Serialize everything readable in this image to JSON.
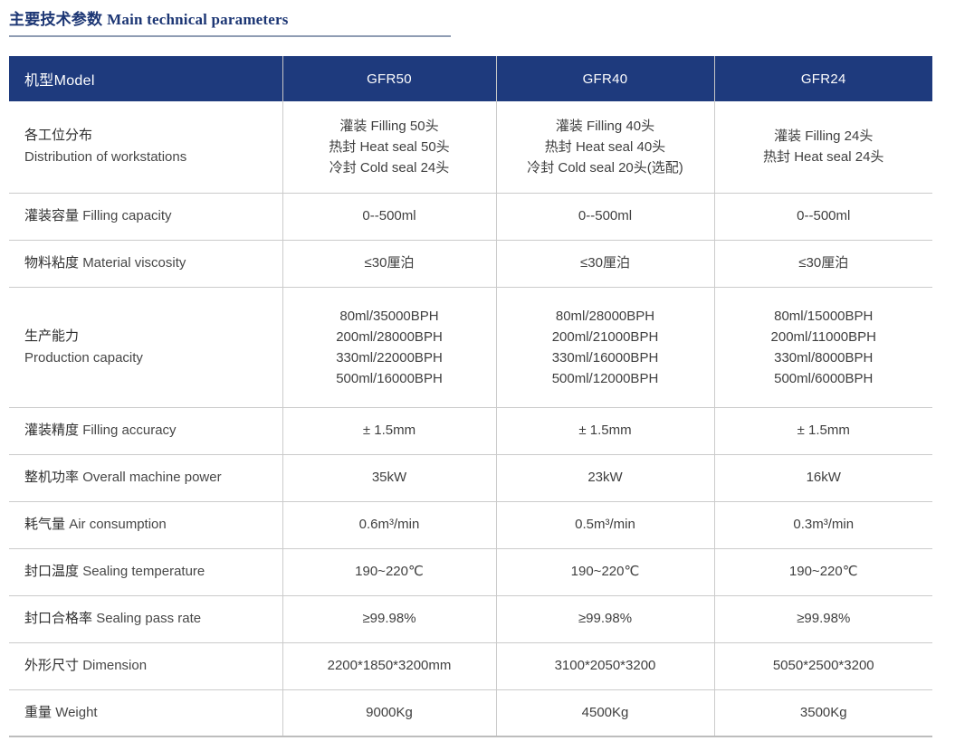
{
  "page": {
    "title_zh": "主要技术参数",
    "title_en": "Main technical parameters"
  },
  "colors": {
    "header_bg": "#1e3a7d",
    "header_text": "#ffffff",
    "title_text": "#1c3674",
    "grid_line": "#cbcbcb",
    "body_text": "#3f3f3f"
  },
  "table": {
    "header": {
      "model_label": "机型Model",
      "models": [
        "GFR50",
        "GFR40",
        "GFR24"
      ]
    },
    "rows": [
      {
        "label_zh": "各工位分布",
        "label_en": "Distribution of workstations",
        "stacked_label": true,
        "values": [
          [
            "灌装 Filling 50头",
            "热封 Heat seal 50头",
            "冷封 Cold seal 24头"
          ],
          [
            "灌装 Filling 40头",
            "热封 Heat seal 40头",
            "冷封 Cold seal 20头(选配)"
          ],
          [
            "灌装 Filling 24头",
            "热封 Heat seal 24头"
          ]
        ]
      },
      {
        "label_zh": "灌装容量",
        "label_en": "Filling capacity",
        "stacked_label": false,
        "values": [
          "0--500ml",
          "0--500ml",
          "0--500ml"
        ]
      },
      {
        "label_zh": "物料粘度",
        "label_en": "Material viscosity",
        "stacked_label": false,
        "values": [
          "≤30厘泊",
          "≤30厘泊",
          "≤30厘泊"
        ]
      },
      {
        "label_zh": "生产能力",
        "label_en": "Production capacity",
        "stacked_label": true,
        "values": [
          [
            "80ml/35000BPH",
            "200ml/28000BPH",
            "330ml/22000BPH",
            "500ml/16000BPH"
          ],
          [
            "80ml/28000BPH",
            "200ml/21000BPH",
            "330ml/16000BPH",
            "500ml/12000BPH"
          ],
          [
            "80ml/15000BPH",
            "200ml/11000BPH",
            "330ml/8000BPH",
            "500ml/6000BPH"
          ]
        ]
      },
      {
        "label_zh": "灌装精度",
        "label_en": "Filling accuracy",
        "stacked_label": false,
        "values": [
          "± 1.5mm",
          "± 1.5mm",
          "± 1.5mm"
        ]
      },
      {
        "label_zh": "整机功率",
        "label_en": "Overall machine power",
        "stacked_label": false,
        "values": [
          "35kW",
          "23kW",
          "16kW"
        ]
      },
      {
        "label_zh": "耗气量",
        "label_en": "Air consumption",
        "stacked_label": false,
        "values": [
          "0.6m³/min",
          "0.5m³/min",
          "0.3m³/min"
        ]
      },
      {
        "label_zh": "封口温度",
        "label_en": "Sealing temperature",
        "stacked_label": false,
        "values": [
          "190~220℃",
          "190~220℃",
          "190~220℃"
        ]
      },
      {
        "label_zh": "封口合格率",
        "label_en": "Sealing pass rate",
        "stacked_label": false,
        "values": [
          "≥99.98%",
          "≥99.98%",
          "≥99.98%"
        ]
      },
      {
        "label_zh": "外形尺寸",
        "label_en": "Dimension",
        "stacked_label": false,
        "values": [
          "2200*1850*3200mm",
          "3100*2050*3200",
          "5050*2500*3200"
        ]
      },
      {
        "label_zh": "重量",
        "label_en": "Weight",
        "stacked_label": false,
        "values": [
          "9000Kg",
          "4500Kg",
          "3500Kg"
        ]
      }
    ]
  }
}
